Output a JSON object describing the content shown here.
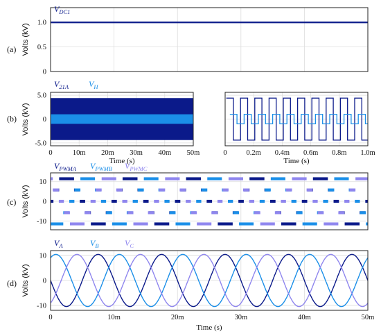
{
  "colors": {
    "dark": "#0b1a8a",
    "mid": "#1b8fe8",
    "light": "#8f86ee",
    "grid": "#dddddd",
    "axis": "#222222"
  },
  "chart_data": [
    {
      "panel": "(a)",
      "type": "line",
      "legend": [
        {
          "name": "V",
          "sub": "DC1",
          "color": "#0b1a8a"
        }
      ],
      "ylabel": "Volts (kV)",
      "yticks": [
        "0",
        "0.5",
        "1.0"
      ],
      "ylim": [
        0,
        1.3
      ],
      "xlim": [
        0,
        50
      ],
      "x_unit": "ms",
      "series": [
        {
          "name": "V_DC1",
          "values": [
            1.0,
            1.0
          ]
        }
      ]
    },
    {
      "panel": "(b-left)",
      "type": "line",
      "legend": [
        {
          "name": "V",
          "sub": "21A",
          "color": "#0b1a8a"
        },
        {
          "name": "V",
          "sub": "H",
          "color": "#1b8fe8"
        }
      ],
      "ylabel": "Volts (kV)",
      "yticks": [
        "5.0",
        "0",
        "-5.0"
      ],
      "ylim": [
        -5.6,
        5.6
      ],
      "xticks": [
        "0",
        "10m",
        "20m",
        "30m",
        "40m",
        "50m"
      ],
      "xlim": [
        0,
        50
      ],
      "xlabel": "Time (s)",
      "series": [
        {
          "name": "V_21A",
          "amplitude": 4.4
        },
        {
          "name": "V_H",
          "amplitude": 1.0
        }
      ]
    },
    {
      "panel": "(b-right)",
      "type": "line",
      "xticks": [
        "0",
        "0.2m",
        "0.4m",
        "0.6m",
        "0.8m",
        "1.0m"
      ],
      "xlim": [
        0,
        1.0
      ],
      "xlabel": "Time (s)",
      "ylim": [
        -5.6,
        5.6
      ],
      "series": [
        {
          "name": "V_21A",
          "high": 4.4,
          "low": -4.4,
          "periods_in_window": 10
        },
        {
          "name": "V_H",
          "high": 1.0,
          "low": -1.0,
          "periods_in_window": 10
        }
      ]
    },
    {
      "panel": "(c)",
      "type": "line",
      "legend": [
        {
          "name": "V",
          "sub": "PWMA",
          "color": "#0b1a8a"
        },
        {
          "name": "V",
          "sub": "PWMB",
          "color": "#1b8fe8"
        },
        {
          "name": "V",
          "sub": "PWMC",
          "color": "#8f86ee"
        }
      ],
      "ylabel": "Volts (kV)",
      "yticks": [
        "10",
        "0",
        "-10"
      ],
      "ylim": [
        -14.5,
        14.5
      ],
      "xlim": [
        0,
        50
      ],
      "levels": [
        -11.5,
        -5.8,
        0,
        5.8,
        11.5
      ],
      "series": [
        {
          "name": "V_PWMA",
          "phase_deg": 0
        },
        {
          "name": "V_PWMB",
          "phase_deg": -120
        },
        {
          "name": "V_PWMC",
          "phase_deg": 120
        }
      ]
    },
    {
      "panel": "(d)",
      "type": "line",
      "legend": [
        {
          "name": "V",
          "sub": "A",
          "color": "#0b1a8a"
        },
        {
          "name": "V",
          "sub": "B",
          "color": "#1b8fe8"
        },
        {
          "name": "V",
          "sub": "C",
          "color": "#8f86ee"
        }
      ],
      "ylabel": "Volts (kV)",
      "yticks": [
        "10",
        "0",
        "-10"
      ],
      "ylim": [
        -12,
        12
      ],
      "xticks": [
        "0",
        "10m",
        "20m",
        "30m",
        "40m",
        "50m"
      ],
      "xlim": [
        0,
        50
      ],
      "xlabel": "Time (s)",
      "frequency_hz": 100,
      "amplitude": 10.5,
      "series": [
        {
          "name": "V_A",
          "phase_deg": 0
        },
        {
          "name": "V_B",
          "phase_deg": -120
        },
        {
          "name": "V_C",
          "phase_deg": 120
        }
      ]
    }
  ]
}
